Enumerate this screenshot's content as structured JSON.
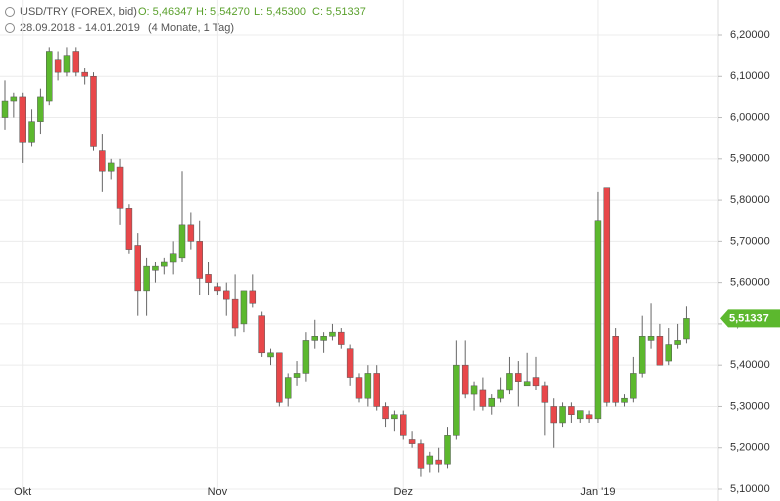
{
  "header": {
    "instrument": "USD/TRY (FOREX, bid)",
    "open": "O: 5,46347",
    "high": "H: 5,54270",
    "low": "L: 5,45300",
    "close": "C: 5,51337",
    "range": "28.09.2018 - 14.01.2019",
    "duration": "(4 Monate, 1 Tag)"
  },
  "chart_data": {
    "type": "candlestick",
    "categories": [
      null,
      null,
      "Okt",
      null,
      null,
      null,
      null,
      null,
      null,
      null,
      null,
      null,
      null,
      null,
      null,
      null,
      null,
      null,
      null,
      null,
      null,
      null,
      null,
      null,
      "Nov",
      null,
      null,
      null,
      null,
      null,
      null,
      null,
      null,
      null,
      null,
      null,
      null,
      null,
      null,
      null,
      null,
      null,
      null,
      null,
      null,
      "Dez",
      null,
      null,
      null,
      null,
      null,
      null,
      null,
      null,
      null,
      null,
      null,
      null,
      null,
      null,
      null,
      null,
      null,
      null,
      null,
      null,
      null,
      "Jan '19",
      null,
      null,
      null,
      null,
      null,
      null,
      null,
      null,
      null,
      null
    ],
    "open": [
      6.0,
      6.04,
      6.05,
      5.94,
      5.99,
      6.04,
      6.14,
      6.11,
      6.16,
      6.11,
      6.1,
      5.92,
      5.87,
      5.88,
      5.78,
      5.69,
      5.58,
      5.63,
      5.64,
      5.65,
      5.66,
      5.74,
      5.7,
      5.62,
      5.59,
      5.58,
      5.56,
      5.5,
      5.58,
      5.52,
      5.42,
      5.43,
      5.32,
      5.37,
      5.38,
      5.46,
      5.46,
      5.47,
      5.48,
      5.44,
      5.37,
      5.32,
      5.38,
      5.3,
      5.27,
      5.28,
      5.22,
      5.21,
      5.16,
      5.17,
      5.16,
      5.23,
      5.4,
      5.33,
      5.34,
      5.3,
      5.32,
      5.34,
      5.38,
      5.35,
      5.37,
      5.35,
      5.3,
      5.26,
      5.3,
      5.27,
      5.28,
      5.27,
      5.83,
      5.47,
      5.31,
      5.32,
      5.38,
      5.46,
      5.47,
      5.41,
      5.45,
      5.46347
    ],
    "high": [
      6.09,
      6.06,
      6.06,
      6.02,
      6.07,
      6.17,
      6.16,
      6.17,
      6.17,
      6.12,
      6.11,
      5.96,
      5.9,
      5.9,
      5.79,
      5.72,
      5.66,
      5.65,
      5.66,
      5.7,
      5.87,
      5.77,
      5.75,
      5.65,
      5.6,
      5.6,
      5.62,
      5.58,
      5.62,
      5.53,
      5.44,
      5.43,
      5.38,
      5.41,
      5.48,
      5.51,
      5.48,
      5.5,
      5.49,
      5.45,
      5.38,
      5.4,
      5.4,
      5.31,
      5.29,
      5.29,
      5.24,
      5.22,
      5.19,
      5.2,
      5.25,
      5.46,
      5.46,
      5.36,
      5.37,
      5.33,
      5.37,
      5.42,
      5.41,
      5.43,
      5.42,
      5.36,
      5.32,
      5.31,
      5.31,
      5.29,
      5.29,
      5.82,
      5.83,
      5.49,
      5.33,
      5.42,
      5.52,
      5.55,
      5.5,
      5.49,
      5.5,
      5.5427
    ],
    "low": [
      5.97,
      6.0,
      5.89,
      5.93,
      5.96,
      6.03,
      6.09,
      6.1,
      6.1,
      6.08,
      5.92,
      5.82,
      5.85,
      5.74,
      5.67,
      5.52,
      5.52,
      5.6,
      5.62,
      5.62,
      5.65,
      5.68,
      5.57,
      5.57,
      5.57,
      5.52,
      5.47,
      5.48,
      5.54,
      5.42,
      5.4,
      5.3,
      5.3,
      5.35,
      5.36,
      5.44,
      5.43,
      5.46,
      5.44,
      5.35,
      5.31,
      5.3,
      5.29,
      5.25,
      5.24,
      5.22,
      5.2,
      5.13,
      5.14,
      5.14,
      5.15,
      5.22,
      5.32,
      5.29,
      5.29,
      5.28,
      5.31,
      5.33,
      5.3,
      5.35,
      5.34,
      5.23,
      5.2,
      5.25,
      5.26,
      5.26,
      5.26,
      5.26,
      5.3,
      5.3,
      5.3,
      5.31,
      5.37,
      5.44,
      5.4,
      5.4,
      5.44,
      5.453
    ],
    "close": [
      6.04,
      6.05,
      5.94,
      5.99,
      6.05,
      6.16,
      6.11,
      6.15,
      6.11,
      6.1,
      5.93,
      5.87,
      5.89,
      5.78,
      5.68,
      5.58,
      5.64,
      5.64,
      5.65,
      5.67,
      5.74,
      5.7,
      5.61,
      5.6,
      5.58,
      5.56,
      5.49,
      5.58,
      5.55,
      5.43,
      5.43,
      5.31,
      5.37,
      5.38,
      5.46,
      5.47,
      5.47,
      5.48,
      5.45,
      5.37,
      5.32,
      5.38,
      5.3,
      5.27,
      5.28,
      5.23,
      5.21,
      5.15,
      5.18,
      5.16,
      5.23,
      5.4,
      5.33,
      5.35,
      5.3,
      5.32,
      5.34,
      5.38,
      5.36,
      5.36,
      5.35,
      5.31,
      5.26,
      5.3,
      5.28,
      5.29,
      5.27,
      5.75,
      5.31,
      5.31,
      5.32,
      5.38,
      5.47,
      5.47,
      5.4,
      5.45,
      5.46,
      5.51337
    ],
    "up_color": "#5cb82e",
    "down_color": "#e8474a",
    "ylim": [
      5.1,
      6.2
    ],
    "yticks": [
      {
        "value": 5.1,
        "label": "5,10000"
      },
      {
        "value": 5.2,
        "label": "5,20000"
      },
      {
        "value": 5.3,
        "label": "5,30000"
      },
      {
        "value": 5.4,
        "label": "5,40000"
      },
      {
        "value": 5.5,
        "label": "5,50000"
      },
      {
        "value": 5.6,
        "label": "5,60000"
      },
      {
        "value": 5.7,
        "label": "5,70000"
      },
      {
        "value": 5.8,
        "label": "5,80000"
      },
      {
        "value": 5.9,
        "label": "5,90000"
      },
      {
        "value": 6.0,
        "label": "6,00000"
      },
      {
        "value": 6.1,
        "label": "6,10000"
      },
      {
        "value": 6.2,
        "label": "6,20000"
      }
    ],
    "last_price": {
      "value": 5.51337,
      "label": "5,51337"
    },
    "grid": true
  }
}
